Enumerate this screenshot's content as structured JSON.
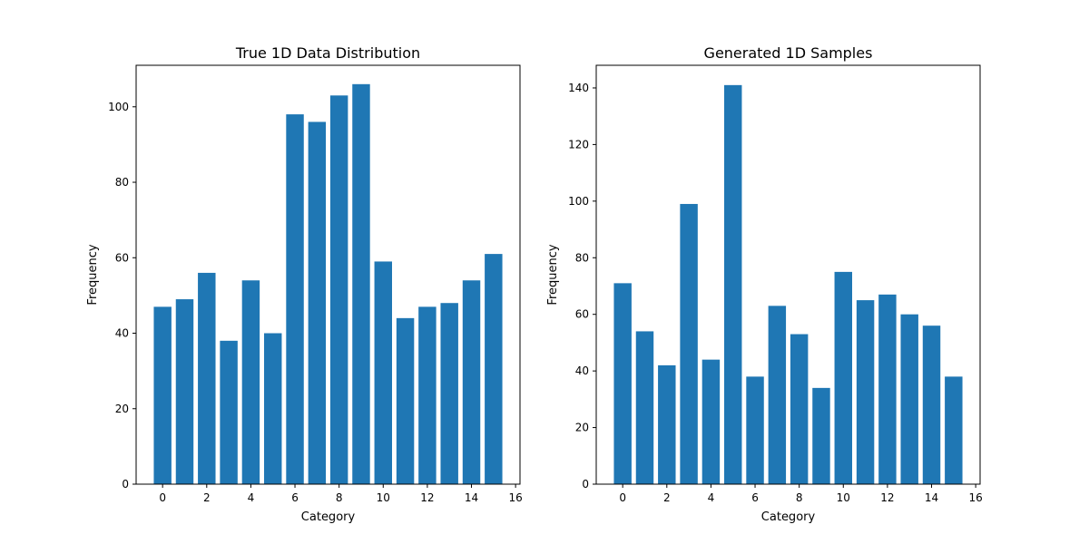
{
  "chart_data": [
    {
      "type": "bar",
      "title": "True 1D Data Distribution",
      "xlabel": "Category",
      "ylabel": "Frequency",
      "x": [
        0,
        1,
        2,
        3,
        4,
        5,
        6,
        7,
        8,
        9,
        10,
        11,
        12,
        13,
        14,
        15
      ],
      "values": [
        47,
        49,
        56,
        38,
        54,
        40,
        98,
        96,
        103,
        106,
        59,
        44,
        47,
        48,
        54,
        61
      ],
      "xlim": [
        -1.2,
        16.2
      ],
      "ylim": [
        0,
        111
      ],
      "xticks": [
        0,
        2,
        4,
        6,
        8,
        10,
        12,
        14,
        16
      ],
      "yticks": [
        0,
        20,
        40,
        60,
        80,
        100
      ],
      "bar_color": "#1f77b4",
      "grid": false
    },
    {
      "type": "bar",
      "title": "Generated 1D Samples",
      "xlabel": "Category",
      "ylabel": "Frequency",
      "x": [
        0,
        1,
        2,
        3,
        4,
        5,
        6,
        7,
        8,
        9,
        10,
        11,
        12,
        13,
        14,
        15
      ],
      "values": [
        71,
        54,
        42,
        99,
        44,
        141,
        38,
        63,
        53,
        34,
        75,
        65,
        67,
        60,
        56,
        38
      ],
      "xlim": [
        -1.2,
        16.2
      ],
      "ylim": [
        0,
        148
      ],
      "xticks": [
        0,
        2,
        4,
        6,
        8,
        10,
        12,
        14,
        16
      ],
      "yticks": [
        0,
        20,
        40,
        60,
        80,
        100,
        120,
        140
      ],
      "bar_color": "#1f77b4",
      "grid": false
    }
  ]
}
